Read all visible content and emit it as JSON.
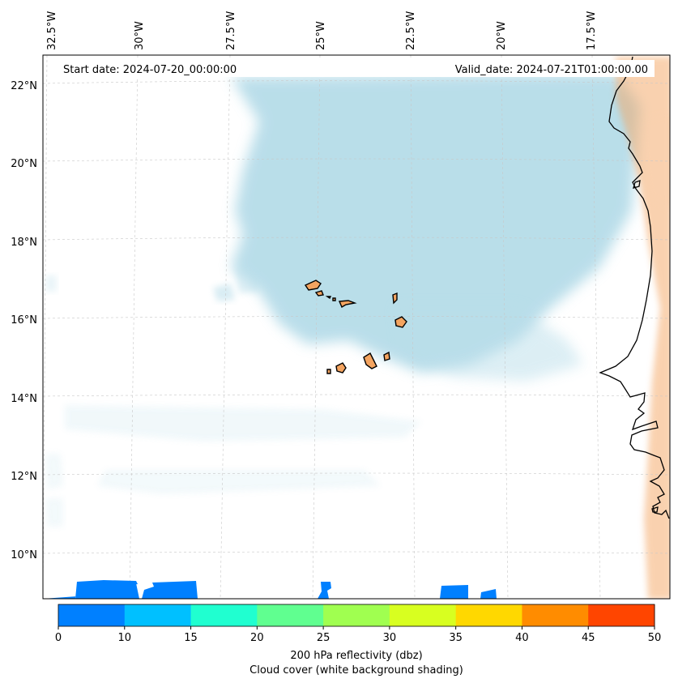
{
  "header": {
    "start_date": "Start date: 2024-07-20_00:00:00",
    "valid_date": "Valid_date: 2024-07-21T01:00:00.00"
  },
  "map": {
    "longitude_labels": [
      "32.5°W",
      "30°W",
      "27.5°W",
      "25°W",
      "22.5°W",
      "20°W",
      "17.5°W"
    ],
    "latitude_labels": [
      "22°N",
      "20°N",
      "18°N",
      "16°N",
      "14°N",
      "12°N",
      "10°N"
    ],
    "colors": {
      "cloud": "#add8e6",
      "land_fill": "#f4a460",
      "coastline": "#000000",
      "gridline": "#c8c8c8"
    }
  },
  "colorbar": {
    "ticks": [
      "0",
      "10",
      "15",
      "20",
      "25",
      "30",
      "35",
      "40",
      "45",
      "50"
    ],
    "colors": [
      "#0080ff",
      "#00c0ff",
      "#20ffd0",
      "#60ff90",
      "#a0ff50",
      "#d8ff20",
      "#ffd800",
      "#ff8c00",
      "#ff4500"
    ],
    "label_line1": "200 hPa reflectivity (dbz)",
    "label_line2": "Cloud cover (white background shading)"
  }
}
